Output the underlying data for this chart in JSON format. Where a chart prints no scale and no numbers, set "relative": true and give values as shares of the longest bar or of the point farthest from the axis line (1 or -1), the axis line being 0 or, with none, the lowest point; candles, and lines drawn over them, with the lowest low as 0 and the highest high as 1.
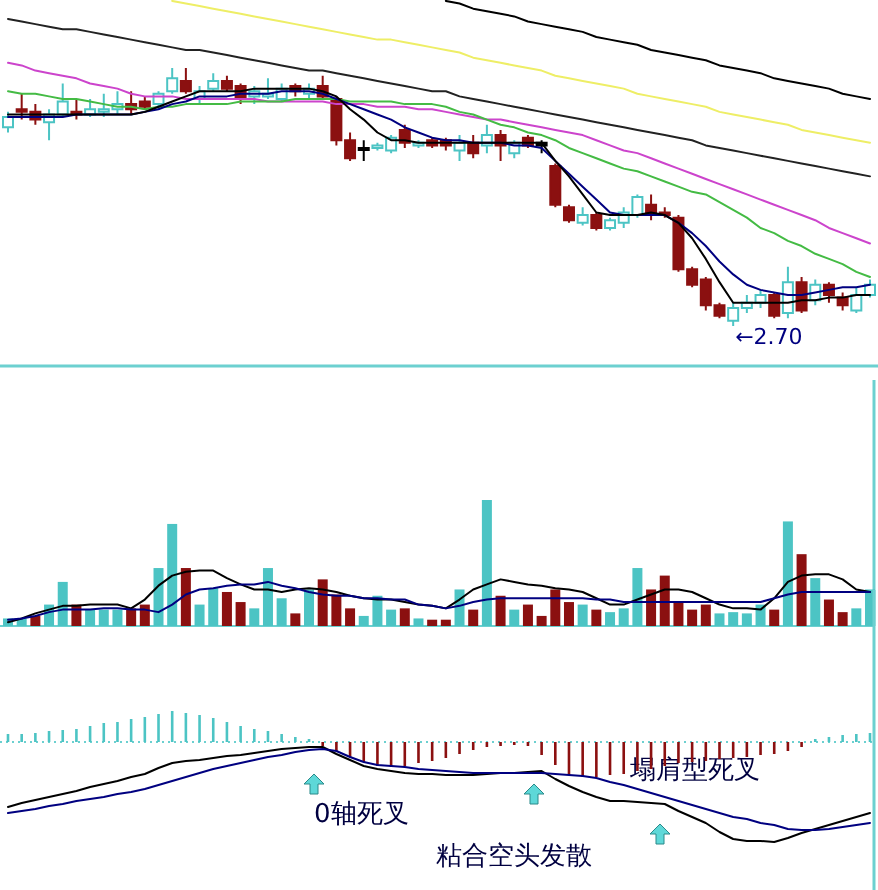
{
  "chart_data": [
    {
      "type": "candlestick",
      "relative": true,
      "categories": [
        null,
        null,
        null,
        null,
        null,
        null,
        null,
        null,
        null,
        null,
        null,
        null,
        null,
        null,
        null,
        null,
        null,
        null,
        null,
        null,
        null,
        null,
        null,
        null,
        null,
        null,
        null,
        null,
        null,
        null,
        null,
        null,
        null,
        null,
        null,
        null,
        null,
        null,
        null,
        null,
        null,
        null,
        null,
        null,
        null,
        null,
        null,
        null,
        null,
        null,
        null,
        null,
        null,
        null,
        null,
        null,
        null,
        null,
        null,
        null,
        null,
        null,
        null,
        null
      ],
      "ohlc": [
        [
          0.77,
          0.83,
          0.75,
          0.81
        ],
        [
          0.84,
          0.9,
          0.8,
          0.83
        ],
        [
          0.83,
          0.86,
          0.78,
          0.8
        ],
        [
          0.79,
          0.84,
          0.72,
          0.82
        ],
        [
          0.82,
          0.94,
          0.81,
          0.87
        ],
        [
          0.83,
          0.88,
          0.8,
          0.82
        ],
        [
          0.82,
          0.88,
          0.81,
          0.84
        ],
        [
          0.83,
          0.9,
          0.81,
          0.84
        ],
        [
          0.84,
          0.91,
          0.82,
          0.86
        ],
        [
          0.86,
          0.91,
          0.82,
          0.84
        ],
        [
          0.87,
          0.89,
          0.84,
          0.85
        ],
        [
          0.86,
          0.91,
          0.84,
          0.9
        ],
        [
          0.91,
          1,
          0.9,
          0.96
        ],
        [
          0.95,
          1,
          0.9,
          0.91
        ],
        [
          0.88,
          0.93,
          0.86,
          0.91
        ],
        [
          0.92,
          0.98,
          0.91,
          0.95
        ],
        [
          0.95,
          0.97,
          0.91,
          0.92
        ],
        [
          0.93,
          0.94,
          0.86,
          0.88
        ],
        [
          0.89,
          0.93,
          0.86,
          0.91
        ],
        [
          0.89,
          0.96,
          0.88,
          0.9
        ],
        [
          0.88,
          0.94,
          0.87,
          0.92
        ],
        [
          0.93,
          0.94,
          0.89,
          0.91
        ],
        [
          0.9,
          0.94,
          0.88,
          0.92
        ],
        [
          0.93,
          0.97,
          0.88,
          0.89
        ],
        [
          0.88,
          0.89,
          0.7,
          0.72
        ],
        [
          0.72,
          0.75,
          0.64,
          0.65
        ],
        [
          0.69,
          0.72,
          0.64,
          0.69
        ],
        [
          0.69,
          0.71,
          0.68,
          0.7
        ],
        [
          0.68,
          0.74,
          0.67,
          0.73
        ],
        [
          0.76,
          0.78,
          0.69,
          0.71
        ],
        [
          0.7,
          0.72,
          0.69,
          0.71
        ],
        [
          0.72,
          0.73,
          0.69,
          0.7
        ],
        [
          0.72,
          0.73,
          0.68,
          0.7
        ],
        [
          0.68,
          0.74,
          0.64,
          0.71
        ],
        [
          0.71,
          0.74,
          0.65,
          0.67
        ],
        [
          0.7,
          0.78,
          0.67,
          0.74
        ],
        [
          0.74,
          0.76,
          0.64,
          0.7
        ],
        [
          0.67,
          0.72,
          0.65,
          0.71
        ],
        [
          0.73,
          0.74,
          0.69,
          0.7
        ],
        [
          0.71,
          0.72,
          0.67,
          0.7
        ],
        [
          0.62,
          0.63,
          0.46,
          0.47
        ],
        [
          0.46,
          0.47,
          0.4,
          0.41
        ],
        [
          0.4,
          0.46,
          0.39,
          0.43
        ],
        [
          0.43,
          0.44,
          0.37,
          0.38
        ],
        [
          0.38,
          0.42,
          0.37,
          0.41
        ],
        [
          0.4,
          0.46,
          0.38,
          0.44
        ],
        [
          0.43,
          0.51,
          0.42,
          0.5
        ],
        [
          0.47,
          0.51,
          0.41,
          0.43
        ],
        [
          0.44,
          0.46,
          0.42,
          0.43
        ],
        [
          0.42,
          0.43,
          0.21,
          0.22
        ],
        [
          0.22,
          0.23,
          0.15,
          0.16
        ],
        [
          0.18,
          0.19,
          0.06,
          0.08
        ],
        [
          0.08,
          0.09,
          0.03,
          0.04
        ],
        [
          0.02,
          0.09,
          0,
          0.07
        ],
        [
          0.07,
          0.12,
          0.05,
          0.09
        ],
        [
          0.09,
          0.14,
          0.07,
          0.12
        ],
        [
          0.12,
          0.13,
          0.03,
          0.04
        ],
        [
          0.05,
          0.23,
          0.03,
          0.17
        ],
        [
          0.17,
          0.19,
          0.05,
          0.06
        ],
        [
          0.1,
          0.18,
          0.08,
          0.16
        ],
        [
          0.16,
          0.17,
          0.09,
          0.12
        ],
        [
          0.11,
          0.13,
          0.06,
          0.08
        ],
        [
          0.06,
          0.15,
          0.05,
          0.12
        ],
        [
          0.12,
          0.18,
          0.11,
          0.16
        ]
      ],
      "colors": [
        "#4cc4c4",
        "#8b1010",
        "#8b1010",
        "#4cc4c4",
        "#4cc4c4",
        "#8b1010",
        "#4cc4c4",
        "#4cc4c4",
        "#4cc4c4",
        "#8b1010",
        "#8b1010",
        "#4cc4c4",
        "#4cc4c4",
        "#8b1010",
        "#4cc4c4",
        "#4cc4c4",
        "#8b1010",
        "#8b1010",
        "#4cc4c4",
        "#4cc4c4",
        "#4cc4c4",
        "#8b1010",
        "#4cc4c4",
        "#8b1010",
        "#8b1010",
        "#8b1010",
        "#000000",
        "#4cc4c4",
        "#4cc4c4",
        "#8b1010",
        "#4cc4c4",
        "#8b1010",
        "#8b1010",
        "#4cc4c4",
        "#8b1010",
        "#4cc4c4",
        "#8b1010",
        "#4cc4c4",
        "#8b1010",
        "#000000",
        "#8b1010",
        "#8b1010",
        "#4cc4c4",
        "#8b1010",
        "#4cc4c4",
        "#4cc4c4",
        "#4cc4c4",
        "#8b1010",
        "#8b1010",
        "#8b1010",
        "#8b1010",
        "#8b1010",
        "#8b1010",
        "#4cc4c4",
        "#4cc4c4",
        "#4cc4c4",
        "#8b1010",
        "#4cc4c4",
        "#8b1010",
        "#4cc4c4",
        "#8b1010",
        "#8b1010",
        "#4cc4c4",
        "#4cc4c4"
      ],
      "series": [
        {
          "type": "line",
          "color": "#000000",
          "values": [
            null,
            null,
            null,
            null,
            null,
            null,
            null,
            null,
            null,
            null,
            null,
            null,
            null,
            null,
            null,
            null,
            null,
            null,
            null,
            null,
            null,
            null,
            null,
            null,
            null,
            null,
            null,
            null,
            null,
            null,
            null,
            null,
            1.26,
            1.25,
            1.23,
            1.22,
            1.21,
            1.2,
            1.18,
            1.17,
            1.16,
            1.15,
            1.14,
            1.12,
            1.11,
            1.1,
            1.09,
            1.07,
            1.06,
            1.05,
            1.04,
            1.03,
            1.01,
            1.0,
            0.99,
            0.98,
            0.96,
            0.95,
            0.94,
            0.93,
            0.92,
            0.9,
            0.89,
            0.88
          ]
        },
        {
          "type": "line",
          "color": "#222222",
          "values": [
            1.19,
            1.18,
            1.17,
            1.16,
            1.15,
            1.15,
            1.14,
            1.13,
            1.12,
            1.11,
            1.1,
            1.09,
            1.08,
            1.07,
            1.07,
            1.06,
            1.05,
            1.04,
            1.03,
            1.02,
            1.01,
            1.0,
            0.99,
            0.99,
            0.98,
            0.97,
            0.96,
            0.95,
            0.94,
            0.93,
            0.92,
            0.91,
            0.91,
            0.89,
            0.88,
            0.87,
            0.86,
            0.85,
            0.84,
            0.83,
            0.82,
            0.81,
            0.8,
            0.79,
            0.78,
            0.77,
            0.76,
            0.75,
            0.74,
            0.73,
            0.72,
            0.7,
            0.69,
            0.68,
            0.67,
            0.66,
            0.65,
            0.64,
            0.63,
            0.62,
            0.61,
            0.6,
            0.59,
            0.58
          ]
        },
        {
          "type": "line",
          "color": "#eeee66",
          "values": [
            null,
            null,
            null,
            null,
            null,
            null,
            null,
            null,
            null,
            null,
            null,
            null,
            1.26,
            1.25,
            1.24,
            1.23,
            1.22,
            1.21,
            1.2,
            1.19,
            1.18,
            1.17,
            1.16,
            1.15,
            1.14,
            1.13,
            1.12,
            1.11,
            1.11,
            1.1,
            1.09,
            1.08,
            1.07,
            1.06,
            1.04,
            1.03,
            1.02,
            1.01,
            1.0,
            0.99,
            0.97,
            0.96,
            0.95,
            0.94,
            0.93,
            0.92,
            0.9,
            0.89,
            0.88,
            0.87,
            0.86,
            0.85,
            0.83,
            0.82,
            0.81,
            0.8,
            0.79,
            0.78,
            0.76,
            0.75,
            0.74,
            0.73,
            0.72,
            0.71
          ]
        },
        {
          "type": "line",
          "color": "#cc44cc",
          "values": [
            1.02,
            1.01,
            0.99,
            0.98,
            0.97,
            0.96,
            0.94,
            0.93,
            0.92,
            0.9,
            0.89,
            0.89,
            0.89,
            0.88,
            0.88,
            0.88,
            0.88,
            0.88,
            0.88,
            0.87,
            0.87,
            0.87,
            0.87,
            0.87,
            0.86,
            0.86,
            0.86,
            0.85,
            0.85,
            0.85,
            0.84,
            0.84,
            0.83,
            0.82,
            0.81,
            0.8,
            0.8,
            0.79,
            0.78,
            0.77,
            0.76,
            0.75,
            0.74,
            0.72,
            0.7,
            0.68,
            0.67,
            0.65,
            0.63,
            0.61,
            0.59,
            0.57,
            0.55,
            0.53,
            0.51,
            0.49,
            0.47,
            0.45,
            0.43,
            0.41,
            0.38,
            0.36,
            0.34,
            0.32
          ]
        },
        {
          "type": "line",
          "color": "#44bb44",
          "values": [
            0.91,
            0.9,
            0.9,
            0.89,
            0.88,
            0.88,
            0.87,
            0.86,
            0.85,
            0.85,
            0.84,
            0.85,
            0.85,
            0.86,
            0.86,
            0.86,
            0.86,
            0.87,
            0.87,
            0.87,
            0.87,
            0.88,
            0.88,
            0.88,
            0.88,
            0.87,
            0.87,
            0.87,
            0.87,
            0.86,
            0.86,
            0.86,
            0.85,
            0.83,
            0.82,
            0.8,
            0.78,
            0.77,
            0.75,
            0.74,
            0.72,
            0.69,
            0.67,
            0.65,
            0.63,
            0.61,
            0.6,
            0.58,
            0.56,
            0.54,
            0.52,
            0.51,
            0.48,
            0.45,
            0.42,
            0.38,
            0.36,
            0.33,
            0.31,
            0.28,
            0.26,
            0.24,
            0.21,
            0.19
          ]
        },
        {
          "type": "line",
          "color": "#000080",
          "values": [
            0.81,
            0.81,
            0.81,
            0.81,
            0.81,
            0.82,
            0.82,
            0.82,
            0.82,
            0.82,
            0.83,
            0.84,
            0.86,
            0.87,
            0.89,
            0.89,
            0.89,
            0.9,
            0.9,
            0.9,
            0.91,
            0.91,
            0.91,
            0.9,
            0.88,
            0.86,
            0.84,
            0.82,
            0.8,
            0.77,
            0.75,
            0.73,
            0.72,
            0.72,
            0.71,
            0.71,
            0.71,
            0.7,
            0.7,
            0.69,
            0.64,
            0.59,
            0.54,
            0.49,
            0.44,
            0.43,
            0.43,
            0.43,
            0.43,
            0.4,
            0.36,
            0.31,
            0.25,
            0.2,
            0.16,
            0.14,
            0.13,
            0.12,
            0.12,
            0.13,
            0.14,
            0.15,
            0.15,
            0.16
          ]
        },
        {
          "type": "line",
          "color": "#000000",
          "values": [
            0.82,
            0.82,
            0.82,
            0.82,
            0.82,
            0.82,
            0.82,
            0.82,
            0.82,
            0.82,
            0.83,
            0.85,
            0.87,
            0.89,
            0.91,
            0.91,
            0.91,
            0.91,
            0.92,
            0.92,
            0.92,
            0.92,
            0.92,
            0.91,
            0.89,
            0.84,
            0.8,
            0.75,
            0.72,
            0.72,
            0.71,
            0.71,
            0.71,
            0.71,
            0.71,
            0.71,
            0.71,
            0.71,
            0.71,
            0.71,
            0.64,
            0.58,
            0.51,
            0.44,
            0.43,
            0.43,
            0.43,
            0.44,
            0.43,
            0.4,
            0.34,
            0.26,
            0.17,
            0.09,
            0.09,
            0.09,
            0.09,
            0.09,
            0.1,
            0.1,
            0.11,
            0.11,
            0.12,
            0.12
          ]
        }
      ],
      "annotations": [
        {
          "text": "←2.70",
          "y": 0
        }
      ]
    },
    {
      "type": "bar",
      "relative": true,
      "categories": [
        null,
        null,
        null,
        null,
        null,
        null,
        null,
        null,
        null,
        null,
        null,
        null,
        null,
        null,
        null,
        null,
        null,
        null,
        null,
        null,
        null,
        null,
        null,
        null,
        null,
        null,
        null,
        null,
        null,
        null,
        null,
        null,
        null,
        null,
        null,
        null,
        null,
        null,
        null,
        null,
        null,
        null,
        null,
        null,
        null,
        null,
        null,
        null,
        null,
        null,
        null,
        null,
        null,
        null,
        null,
        null,
        null,
        null,
        null,
        null,
        null,
        null,
        null,
        null
      ],
      "values": [
        0.06,
        0.06,
        0.08,
        0.17,
        0.35,
        0.17,
        0.13,
        0.13,
        0.13,
        0.14,
        0.17,
        0.46,
        0.81,
        0.46,
        0.17,
        0.3,
        0.27,
        0.19,
        0.14,
        0.46,
        0.22,
        0.1,
        0.29,
        0.37,
        0.25,
        0.14,
        0.08,
        0.24,
        0.13,
        0.14,
        0.06,
        0.05,
        0.05,
        0.29,
        0.13,
        1,
        0.24,
        0.13,
        0.17,
        0.08,
        0.29,
        0.19,
        0.17,
        0.13,
        0.11,
        0.14,
        0.46,
        0.29,
        0.4,
        0.19,
        0.13,
        0.17,
        0.1,
        0.11,
        0.1,
        0.17,
        0.13,
        0.83,
        0.57,
        0.38,
        0.21,
        0.11,
        0.14,
        0.29
      ],
      "colors": [
        "#4cc4c4",
        "#4cc4c4",
        "#8b1010",
        "#4cc4c4",
        "#4cc4c4",
        "#8b1010",
        "#4cc4c4",
        "#4cc4c4",
        "#4cc4c4",
        "#8b1010",
        "#8b1010",
        "#4cc4c4",
        "#4cc4c4",
        "#8b1010",
        "#4cc4c4",
        "#4cc4c4",
        "#8b1010",
        "#8b1010",
        "#4cc4c4",
        "#4cc4c4",
        "#4cc4c4",
        "#8b1010",
        "#4cc4c4",
        "#8b1010",
        "#8b1010",
        "#8b1010",
        "#4cc4c4",
        "#4cc4c4",
        "#4cc4c4",
        "#8b1010",
        "#4cc4c4",
        "#8b1010",
        "#8b1010",
        "#4cc4c4",
        "#8b1010",
        "#4cc4c4",
        "#8b1010",
        "#4cc4c4",
        "#8b1010",
        "#8b1010",
        "#8b1010",
        "#8b1010",
        "#4cc4c4",
        "#8b1010",
        "#4cc4c4",
        "#4cc4c4",
        "#4cc4c4",
        "#8b1010",
        "#8b1010",
        "#8b1010",
        "#8b1010",
        "#8b1010",
        "#4cc4c4",
        "#4cc4c4",
        "#4cc4c4",
        "#4cc4c4",
        "#8b1010",
        "#4cc4c4",
        "#8b1010",
        "#4cc4c4",
        "#8b1010",
        "#8b1010",
        "#4cc4c4",
        "#4cc4c4"
      ],
      "series": [
        {
          "type": "line",
          "color": "#000000",
          "values": [
            0.03,
            0.06,
            0.1,
            0.13,
            0.16,
            0.16,
            0.17,
            0.17,
            0.17,
            0.14,
            0.21,
            0.32,
            0.4,
            0.43,
            0.44,
            0.44,
            0.38,
            0.33,
            0.29,
            0.29,
            0.27,
            0.29,
            0.3,
            0.29,
            0.27,
            0.24,
            0.22,
            0.21,
            0.21,
            0.19,
            0.17,
            0.16,
            0.14,
            0.21,
            0.29,
            0.33,
            0.37,
            0.35,
            0.33,
            0.32,
            0.3,
            0.29,
            0.27,
            0.22,
            0.17,
            0.17,
            0.21,
            0.25,
            0.29,
            0.29,
            0.27,
            0.22,
            0.17,
            0.14,
            0.14,
            0.13,
            0.22,
            0.35,
            0.4,
            0.41,
            0.41,
            0.37,
            0.29,
            0.27
          ]
        },
        {
          "type": "line",
          "color": "#000080",
          "values": [
            0.05,
            0.06,
            0.08,
            0.11,
            0.13,
            0.13,
            0.13,
            0.14,
            0.14,
            0.13,
            0.13,
            0.11,
            0.17,
            0.25,
            0.29,
            0.3,
            0.32,
            0.33,
            0.33,
            0.35,
            0.32,
            0.3,
            0.27,
            0.25,
            0.24,
            0.24,
            0.22,
            0.22,
            0.21,
            0.21,
            0.17,
            0.16,
            0.14,
            0.16,
            0.19,
            0.21,
            0.22,
            0.22,
            0.22,
            0.22,
            0.22,
            0.22,
            0.22,
            0.21,
            0.21,
            0.19,
            0.19,
            0.19,
            0.19,
            0.19,
            0.19,
            0.19,
            0.19,
            0.19,
            0.19,
            0.19,
            0.22,
            0.25,
            0.27,
            0.27,
            0.27,
            0.27,
            0.27,
            0.27
          ]
        }
      ]
    },
    {
      "type": "bar",
      "relative": true,
      "categories": [
        null,
        null,
        null,
        null,
        null,
        null,
        null,
        null,
        null,
        null,
        null,
        null,
        null,
        null,
        null,
        null,
        null,
        null,
        null,
        null,
        null,
        null,
        null,
        null,
        null,
        null,
        null,
        null,
        null,
        null,
        null,
        null,
        null,
        null,
        null,
        null,
        null,
        null,
        null,
        null,
        null,
        null,
        null,
        null,
        null,
        null,
        null,
        null,
        null,
        null,
        null,
        null,
        null,
        null,
        null,
        null,
        null,
        null,
        null,
        null,
        null,
        null,
        null,
        null
      ],
      "values": [
        0.08,
        0.08,
        0.09,
        0.11,
        0.12,
        0.13,
        0.16,
        0.19,
        0.2,
        0.23,
        0.25,
        0.28,
        0.31,
        0.29,
        0.27,
        0.24,
        0.2,
        0.16,
        0.13,
        0.11,
        0.08,
        0.05,
        0.03,
        -0.04,
        -0.09,
        -0.15,
        -0.2,
        -0.24,
        -0.25,
        -0.24,
        -0.21,
        -0.19,
        -0.16,
        -0.12,
        -0.08,
        -0.05,
        -0.04,
        -0.03,
        -0.04,
        -0.13,
        -0.23,
        -0.33,
        -0.35,
        -0.35,
        -0.33,
        -0.32,
        -0.29,
        -0.27,
        -0.24,
        -0.21,
        -0.2,
        -0.19,
        -0.17,
        -0.16,
        -0.15,
        -0.13,
        -0.12,
        -0.09,
        -0.05,
        0.03,
        0.05,
        0.07,
        0.08,
        0.09
      ],
      "colors": [
        "#4cc4c4",
        "#4cc4c4",
        "#4cc4c4",
        "#4cc4c4",
        "#4cc4c4",
        "#4cc4c4",
        "#4cc4c4",
        "#4cc4c4",
        "#4cc4c4",
        "#4cc4c4",
        "#4cc4c4",
        "#4cc4c4",
        "#4cc4c4",
        "#4cc4c4",
        "#4cc4c4",
        "#4cc4c4",
        "#4cc4c4",
        "#4cc4c4",
        "#4cc4c4",
        "#4cc4c4",
        "#4cc4c4",
        "#4cc4c4",
        "#4cc4c4",
        "#8b1010",
        "#8b1010",
        "#8b1010",
        "#8b1010",
        "#8b1010",
        "#8b1010",
        "#8b1010",
        "#8b1010",
        "#8b1010",
        "#8b1010",
        "#8b1010",
        "#8b1010",
        "#8b1010",
        "#8b1010",
        "#8b1010",
        "#8b1010",
        "#8b1010",
        "#8b1010",
        "#8b1010",
        "#8b1010",
        "#8b1010",
        "#8b1010",
        "#8b1010",
        "#8b1010",
        "#8b1010",
        "#8b1010",
        "#8b1010",
        "#8b1010",
        "#8b1010",
        "#8b1010",
        "#8b1010",
        "#8b1010",
        "#8b1010",
        "#8b1010",
        "#8b1010",
        "#8b1010",
        "#4cc4c4",
        "#4cc4c4",
        "#4cc4c4",
        "#4cc4c4",
        "#4cc4c4"
      ],
      "series": [
        {
          "type": "line",
          "color": "#000000",
          "values": [
            -0.65,
            -0.61,
            -0.58,
            -0.55,
            -0.52,
            -0.49,
            -0.45,
            -0.42,
            -0.39,
            -0.35,
            -0.32,
            -0.26,
            -0.21,
            -0.19,
            -0.18,
            -0.16,
            -0.14,
            -0.13,
            -0.11,
            -0.09,
            -0.07,
            -0.06,
            -0.05,
            -0.05,
            -0.12,
            -0.18,
            -0.24,
            -0.27,
            -0.29,
            -0.31,
            -0.32,
            -0.32,
            -0.33,
            -0.33,
            -0.33,
            -0.32,
            -0.31,
            -0.31,
            -0.3,
            -0.29,
            -0.37,
            -0.44,
            -0.5,
            -0.55,
            -0.59,
            -0.59,
            -0.6,
            -0.61,
            -0.62,
            -0.69,
            -0.75,
            -0.81,
            -0.9,
            -0.97,
            -0.99,
            -0.99,
            -1,
            -0.96,
            -0.91,
            -0.87,
            -0.83,
            -0.79,
            -0.75,
            -0.71
          ]
        },
        {
          "type": "line",
          "color": "#000080",
          "values": [
            -0.71,
            -0.69,
            -0.67,
            -0.64,
            -0.62,
            -0.59,
            -0.57,
            -0.55,
            -0.52,
            -0.5,
            -0.47,
            -0.43,
            -0.39,
            -0.35,
            -0.31,
            -0.27,
            -0.24,
            -0.21,
            -0.18,
            -0.15,
            -0.13,
            -0.1,
            -0.08,
            -0.07,
            -0.09,
            -0.15,
            -0.2,
            -0.23,
            -0.24,
            -0.25,
            -0.27,
            -0.28,
            -0.29,
            -0.3,
            -0.31,
            -0.31,
            -0.31,
            -0.31,
            -0.31,
            -0.31,
            -0.32,
            -0.33,
            -0.34,
            -0.36,
            -0.4,
            -0.43,
            -0.47,
            -0.51,
            -0.55,
            -0.59,
            -0.63,
            -0.67,
            -0.71,
            -0.75,
            -0.77,
            -0.81,
            -0.83,
            -0.87,
            -0.88,
            -0.88,
            -0.87,
            -0.85,
            -0.83,
            -0.81
          ]
        }
      ],
      "ref_lines": [
        {
          "axis": "y",
          "value": 0,
          "color": "#6cd0d0",
          "line_style": "dotted"
        }
      ],
      "annotations": [
        "0轴死叉",
        "粘合空头发散",
        "塌肩型死叉"
      ]
    }
  ]
}
